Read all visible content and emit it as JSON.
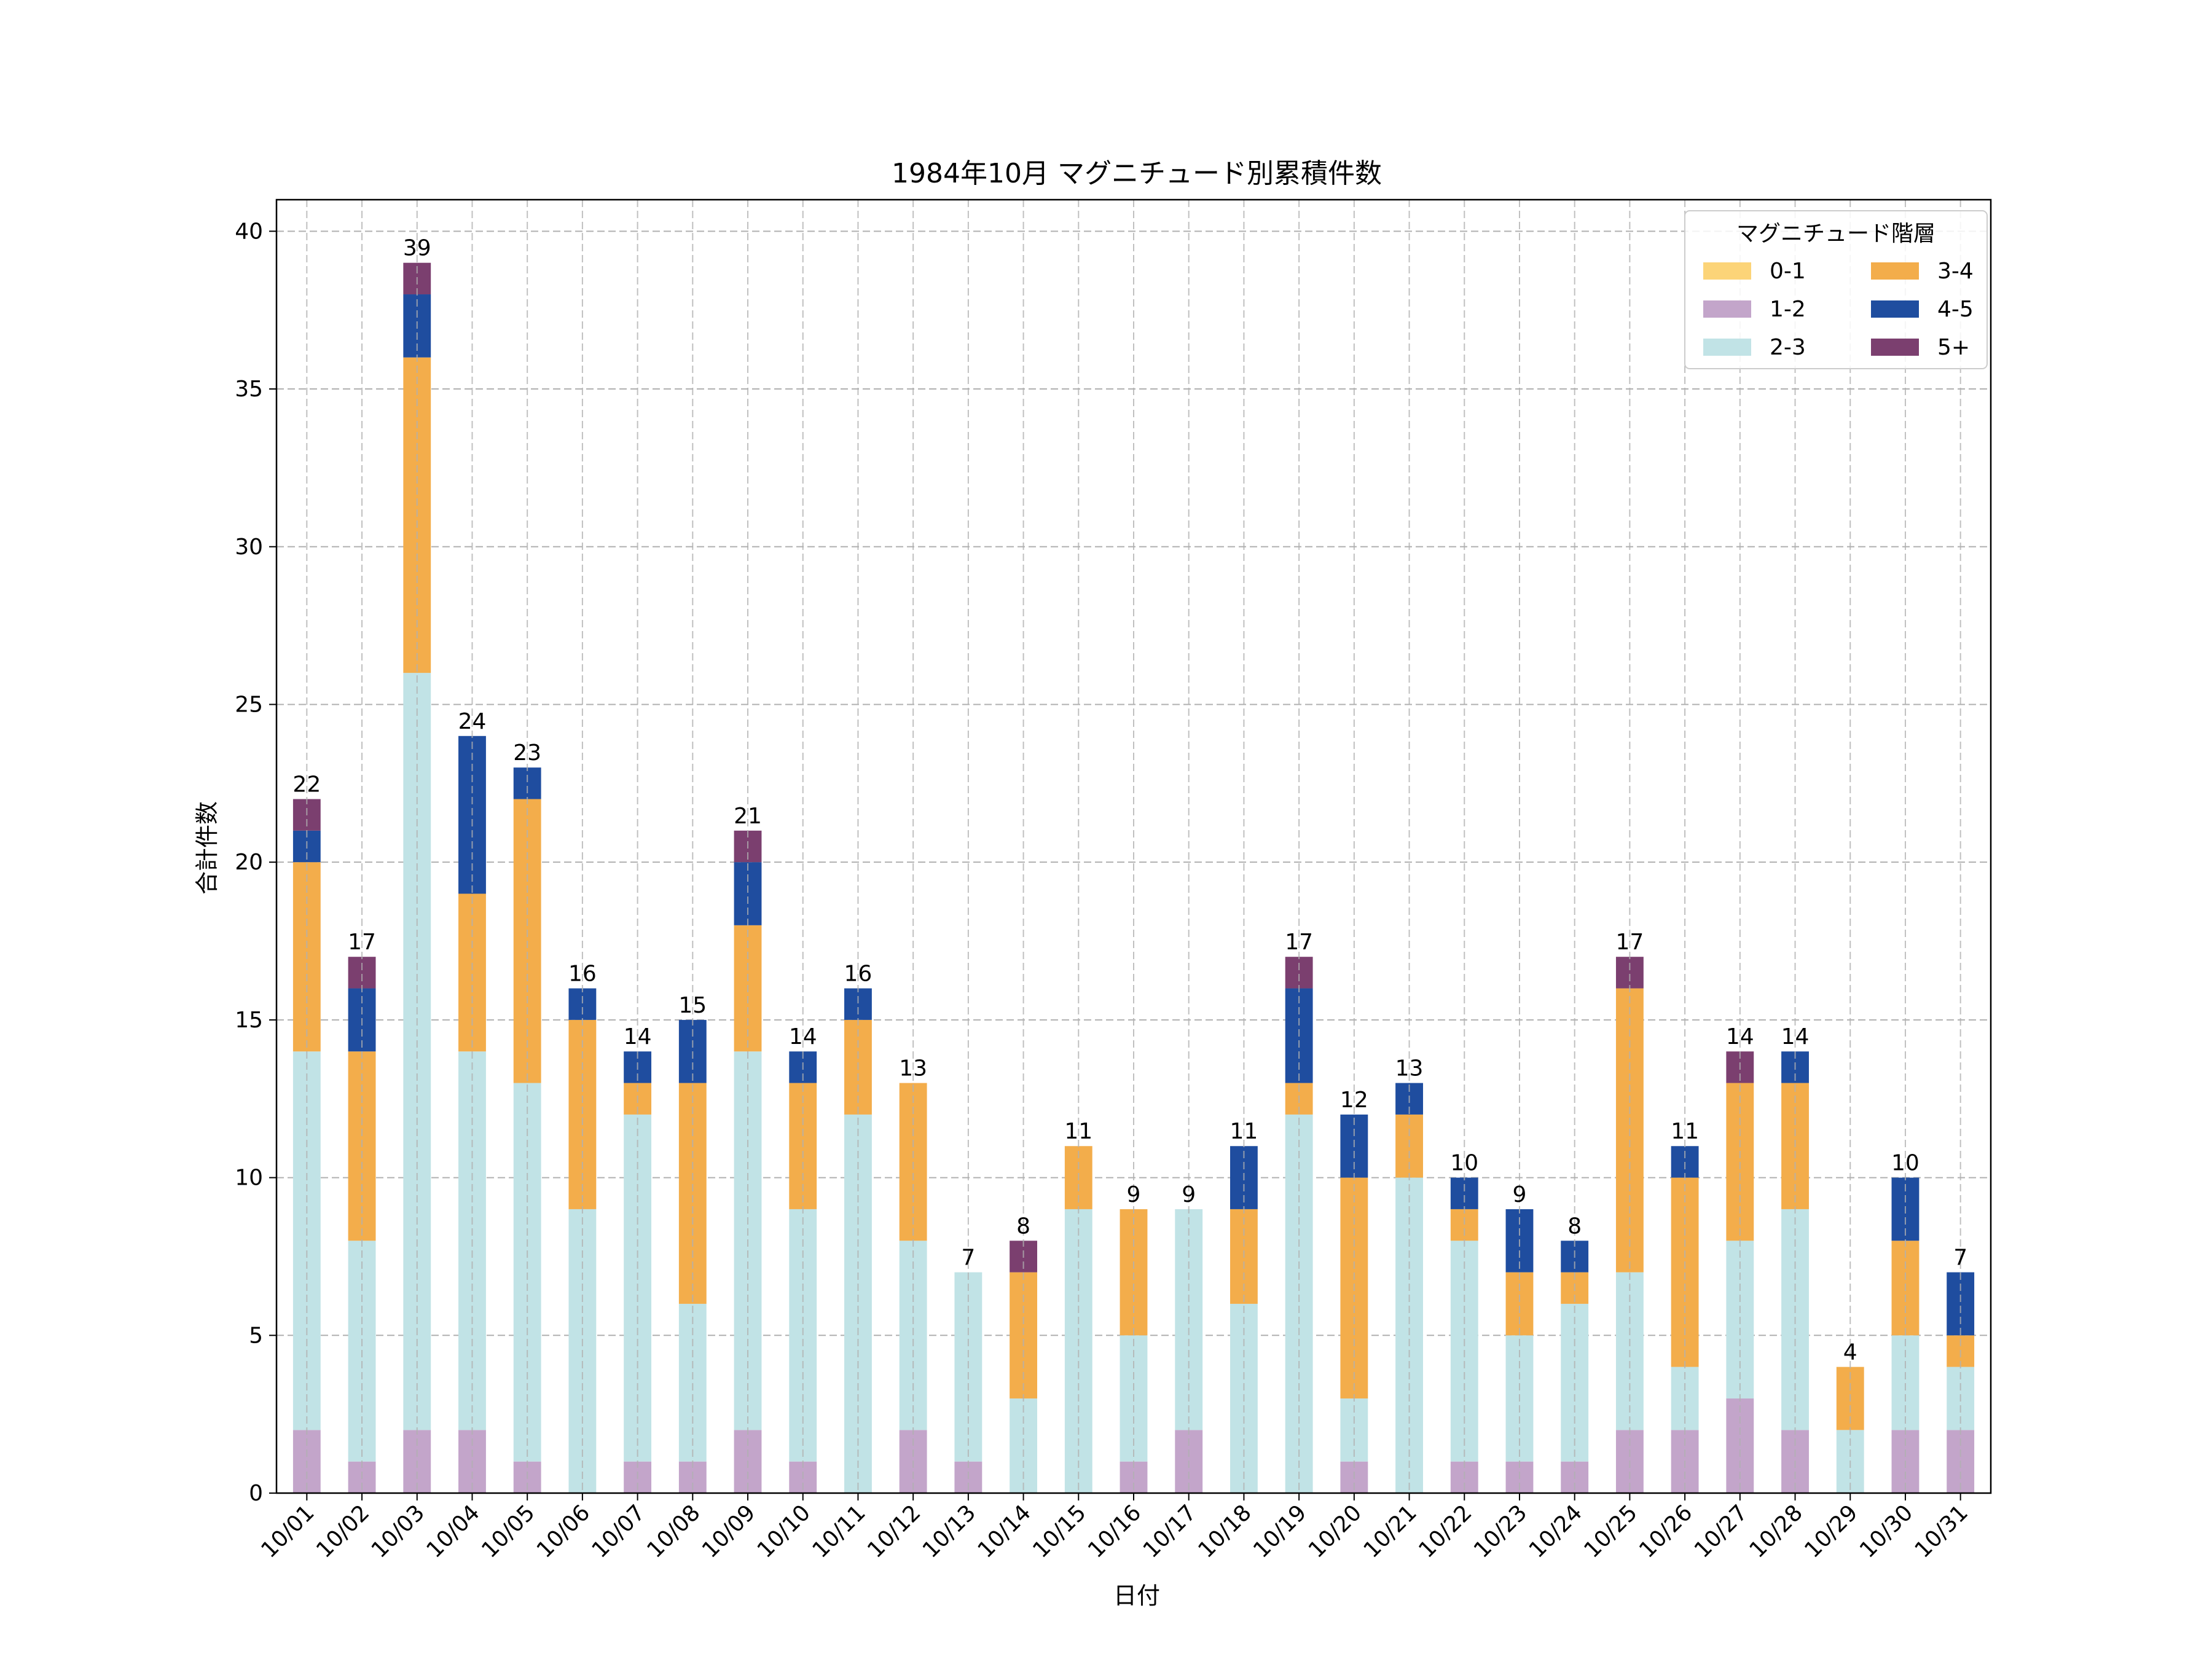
{
  "chart_data": {
    "type": "bar",
    "stacked": true,
    "title": "1984年10月 マグニチュード別累積件数",
    "xlabel": "日付",
    "ylabel": "合計件数",
    "ylim": [
      0,
      41
    ],
    "yticks": [
      0,
      5,
      10,
      15,
      20,
      25,
      30,
      35,
      40
    ],
    "grid": true,
    "legend": {
      "title": "マグニチュード階層",
      "position": "top-right",
      "columns": 2
    },
    "categories": [
      "10/01",
      "10/02",
      "10/03",
      "10/04",
      "10/05",
      "10/06",
      "10/07",
      "10/08",
      "10/09",
      "10/10",
      "10/11",
      "10/12",
      "10/13",
      "10/14",
      "10/15",
      "10/16",
      "10/17",
      "10/18",
      "10/19",
      "10/20",
      "10/21",
      "10/22",
      "10/23",
      "10/24",
      "10/25",
      "10/26",
      "10/27",
      "10/28",
      "10/29",
      "10/30",
      "10/31"
    ],
    "series": [
      {
        "name": "0-1",
        "color": "#fcd478",
        "values": [
          0,
          0,
          0,
          0,
          0,
          0,
          0,
          0,
          0,
          0,
          0,
          0,
          0,
          0,
          0,
          0,
          0,
          0,
          0,
          0,
          0,
          0,
          0,
          0,
          0,
          0,
          0,
          0,
          0,
          0,
          0
        ]
      },
      {
        "name": "1-2",
        "color": "#c3a5ca",
        "values": [
          2,
          1,
          2,
          2,
          1,
          0,
          1,
          1,
          2,
          1,
          0,
          2,
          1,
          0,
          0,
          1,
          2,
          0,
          0,
          1,
          0,
          1,
          1,
          1,
          2,
          2,
          3,
          2,
          0,
          2,
          2
        ]
      },
      {
        "name": "2-3",
        "color": "#c1e3e6",
        "values": [
          12,
          7,
          24,
          12,
          12,
          9,
          11,
          5,
          12,
          8,
          12,
          6,
          6,
          3,
          9,
          4,
          7,
          6,
          12,
          2,
          10,
          7,
          4,
          5,
          5,
          2,
          5,
          7,
          2,
          3,
          2
        ]
      },
      {
        "name": "3-4",
        "color": "#f3ad4b",
        "values": [
          6,
          6,
          10,
          5,
          9,
          6,
          1,
          7,
          4,
          4,
          3,
          5,
          0,
          4,
          2,
          4,
          0,
          3,
          1,
          7,
          2,
          1,
          2,
          1,
          9,
          6,
          5,
          4,
          2,
          3,
          1
        ]
      },
      {
        "name": "4-5",
        "color": "#1f4d9f",
        "values": [
          1,
          2,
          2,
          5,
          1,
          1,
          1,
          2,
          2,
          1,
          1,
          0,
          0,
          0,
          0,
          0,
          0,
          2,
          3,
          2,
          1,
          1,
          2,
          1,
          0,
          1,
          0,
          1,
          0,
          2,
          2
        ]
      },
      {
        "name": "5+",
        "color": "#7b3f6f",
        "values": [
          1,
          1,
          1,
          0,
          0,
          0,
          0,
          0,
          1,
          0,
          0,
          0,
          0,
          1,
          0,
          0,
          0,
          0,
          1,
          0,
          0,
          0,
          0,
          0,
          1,
          0,
          1,
          0,
          0,
          0,
          0
        ]
      }
    ],
    "totals": [
      22,
      17,
      39,
      24,
      23,
      16,
      14,
      15,
      21,
      14,
      16,
      13,
      7,
      8,
      11,
      9,
      9,
      11,
      17,
      12,
      13,
      10,
      9,
      8,
      17,
      11,
      14,
      14,
      4,
      10,
      7
    ]
  }
}
